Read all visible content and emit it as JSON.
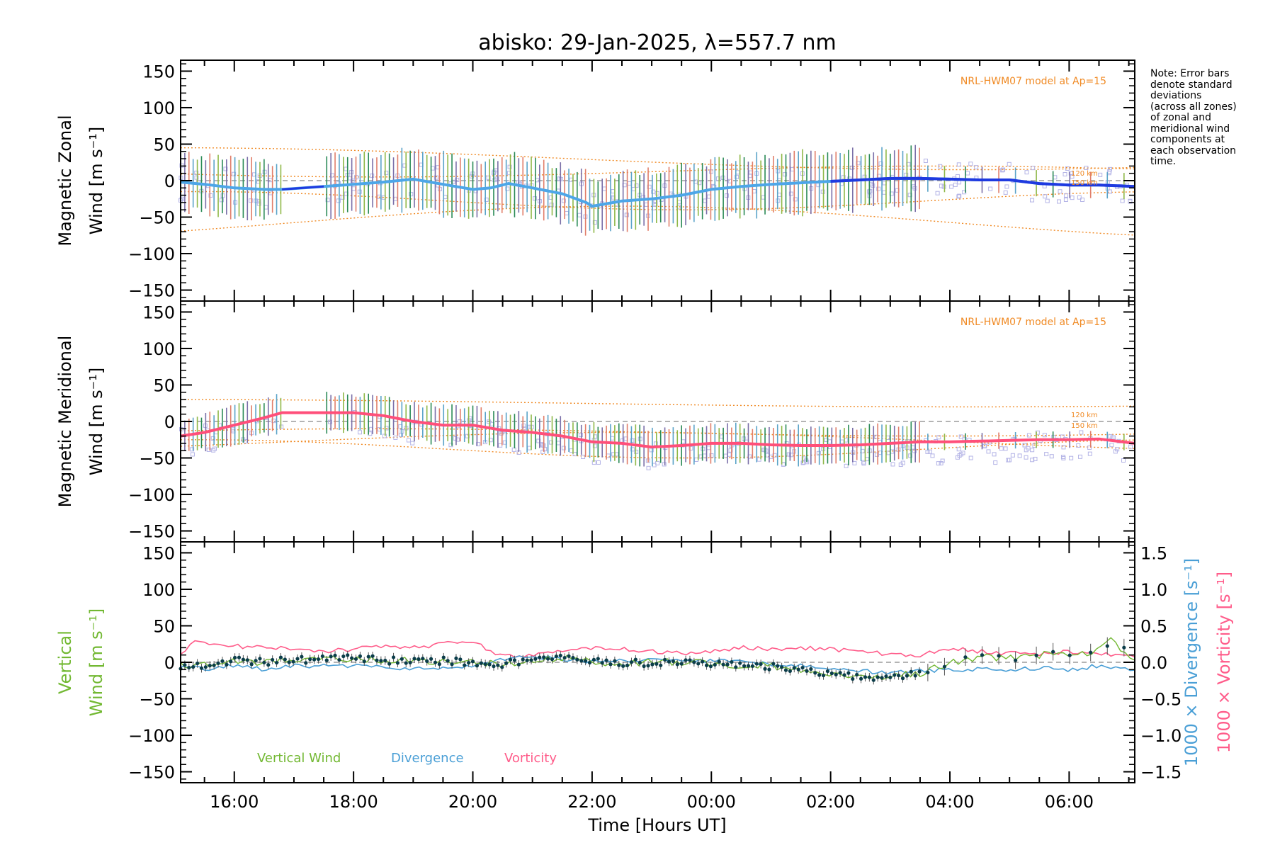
{
  "title": "abisko: 29-Jan-2025, λ=557.7 nm",
  "x_axis": {
    "label": "Time [Hours UT]",
    "ticks": [
      "16:00",
      "18:00",
      "20:00",
      "22:00",
      "00:00",
      "02:00",
      "04:00",
      "06:00"
    ]
  },
  "note_lines": [
    "Note: Error bars",
    "denote standard",
    "deviations",
    "(across all zones)",
    "of zonal and",
    "meridional wind",
    "components at",
    "each observation",
    "time."
  ],
  "colors": {
    "zonal_mean": "#4da6e8",
    "zonal_mean_late": "#1f3ae0",
    "meridional_mean": "#ff4f7a",
    "model": "#f08a24",
    "scatter_points": "#b4b4e6",
    "vertical_wind": "#72b832",
    "divergence": "#4a9fd6",
    "vorticity": "#ff5c8a",
    "vertical_points": "#0b3d4a"
  },
  "chart_data": [
    {
      "type": "line",
      "panel": "zonal",
      "ylabel_line1": "Magnetic Zonal",
      "ylabel_line2": "Wind [m s⁻¹]",
      "ylim": [
        -165,
        165
      ],
      "yticks": [
        "150",
        "100",
        "50",
        "0",
        "−50",
        "−100",
        "−150"
      ],
      "xlim_hours": [
        15.1,
        31.1
      ],
      "model_label": "NRL-HWM07 model at Ap=15",
      "model_alt_labels": [
        "120 km",
        "150 km"
      ],
      "series": [
        {
          "x": [
            15.1,
            15.5,
            16.0,
            16.5,
            16.8,
            17.5,
            18.0,
            18.5,
            19.0,
            19.5,
            20.0,
            20.3,
            20.6,
            21.0,
            21.5,
            21.9,
            22.0,
            22.5,
            23.0,
            23.5,
            24.0,
            24.5,
            25.0,
            25.5,
            26.0,
            26.5,
            27.0,
            27.5,
            28.0,
            28.5,
            29.0,
            29.5,
            30.0,
            30.5,
            31.1
          ],
          "y": [
            -2,
            -5,
            -10,
            -12,
            -12,
            -8,
            -5,
            -2,
            2,
            -5,
            -12,
            -10,
            -4,
            -10,
            -18,
            -30,
            -35,
            -28,
            -25,
            -20,
            -12,
            -8,
            -5,
            -3,
            -1,
            1,
            3,
            3,
            2,
            1,
            1,
            -4,
            -6,
            -6,
            -8
          ]
        }
      ],
      "error_sd": 40
    },
    {
      "type": "line",
      "panel": "meridional",
      "ylabel_line1": "Magnetic Meridional",
      "ylabel_line2": "Wind [m s⁻¹]",
      "ylim": [
        -165,
        165
      ],
      "yticks": [
        "150",
        "100",
        "50",
        "0",
        "−50",
        "−100",
        "−150"
      ],
      "xlim_hours": [
        15.1,
        31.1
      ],
      "model_label": "NRL-HWM07 model at Ap=15",
      "model_alt_labels": [
        "120 km",
        "150 km"
      ],
      "series": [
        {
          "x": [
            15.1,
            15.5,
            16.0,
            16.5,
            16.8,
            17.5,
            18.0,
            18.5,
            19.0,
            19.5,
            20.0,
            20.5,
            21.0,
            21.5,
            22.0,
            22.5,
            23.0,
            23.5,
            24.0,
            24.5,
            25.0,
            25.5,
            26.0,
            26.5,
            27.0,
            27.5,
            28.0,
            28.5,
            29.0,
            29.5,
            30.0,
            30.5,
            31.1
          ],
          "y": [
            -20,
            -15,
            -5,
            5,
            12,
            12,
            12,
            8,
            0,
            -5,
            -5,
            -12,
            -15,
            -20,
            -28,
            -30,
            -35,
            -33,
            -30,
            -30,
            -32,
            -33,
            -33,
            -32,
            -30,
            -28,
            -28,
            -27,
            -26,
            -25,
            -25,
            -24,
            -30
          ]
        }
      ],
      "error_sd": 25
    },
    {
      "type": "line",
      "panel": "vertical",
      "ylabel_line1": "Vertical",
      "ylabel_line2": "Wind [m s⁻¹]",
      "ylim": [
        -165,
        165
      ],
      "yticks": [
        "150",
        "100",
        "50",
        "0",
        "−50",
        "−100",
        "−150"
      ],
      "y2label_div": "1000 × Divergence [s⁻¹]",
      "y2label_vor": "1000 × Vorticity [s⁻¹]",
      "y2lim": [
        -1.65,
        1.65
      ],
      "y2ticks": [
        "1.5",
        "1.0",
        "0.5",
        "0.0",
        "−0.5",
        "−1.0",
        "−1.5"
      ],
      "xlim_hours": [
        15.1,
        31.1
      ],
      "legend": [
        "Vertical Wind",
        "Divergence",
        "Vorticity"
      ],
      "series": [
        {
          "name": "Vertical Wind",
          "x": [
            15.1,
            15.5,
            16.0,
            16.5,
            17.0,
            17.5,
            18.0,
            18.5,
            19.0,
            19.5,
            20.0,
            20.5,
            21.0,
            21.5,
            22.0,
            22.5,
            23.0,
            23.5,
            24.0,
            24.5,
            25.0,
            25.5,
            26.0,
            26.5,
            27.0,
            27.5,
            28.0,
            28.5,
            29.0,
            29.5,
            30.0,
            30.5,
            30.7,
            31.1
          ],
          "y": [
            -5,
            -3,
            2,
            0,
            3,
            5,
            5,
            3,
            2,
            2,
            0,
            -2,
            3,
            5,
            2,
            -2,
            0,
            0,
            -2,
            -5,
            -5,
            -10,
            -15,
            -20,
            -20,
            -15,
            0,
            8,
            5,
            10,
            10,
            15,
            30,
            5
          ]
        },
        {
          "name": "Divergence",
          "x": [
            15.1,
            15.5,
            16.0,
            16.5,
            17.0,
            18.0,
            19.0,
            20.0,
            20.5,
            21.0,
            21.5,
            22.0,
            22.5,
            23.0,
            24.0,
            25.0,
            25.5,
            26.0,
            26.5,
            27.0,
            27.5,
            28.0,
            28.5,
            29.0,
            29.5,
            30.0,
            30.5,
            31.1
          ],
          "y": [
            -0.05,
            -0.1,
            -0.05,
            -0.1,
            -0.05,
            -0.05,
            -0.1,
            -0.05,
            0.05,
            0.08,
            0.05,
            0.0,
            0.02,
            0.05,
            0.02,
            -0.02,
            -0.05,
            -0.08,
            -0.12,
            -0.15,
            -0.12,
            -0.1,
            -0.1,
            -0.1,
            -0.08,
            -0.1,
            -0.05,
            -0.1
          ]
        },
        {
          "name": "Vorticity",
          "x": [
            15.1,
            15.3,
            15.6,
            16.0,
            16.5,
            17.0,
            17.5,
            18.0,
            18.5,
            19.0,
            19.5,
            20.0,
            20.3,
            20.6,
            21.0,
            21.5,
            22.0,
            22.5,
            23.0,
            23.5,
            24.0,
            24.5,
            25.0,
            25.5,
            26.0,
            26.5,
            27.0,
            27.5,
            28.0,
            28.5,
            29.0,
            29.5,
            30.0,
            30.5,
            31.1
          ],
          "y": [
            0.1,
            0.28,
            0.25,
            0.22,
            0.2,
            0.2,
            0.15,
            0.18,
            0.22,
            0.2,
            0.25,
            0.28,
            0.15,
            0.08,
            0.1,
            0.15,
            0.2,
            0.18,
            0.15,
            0.12,
            0.15,
            0.2,
            0.18,
            0.2,
            0.18,
            0.15,
            0.1,
            0.1,
            0.2,
            0.15,
            0.12,
            0.12,
            0.15,
            0.12,
            0.08
          ]
        }
      ]
    }
  ]
}
